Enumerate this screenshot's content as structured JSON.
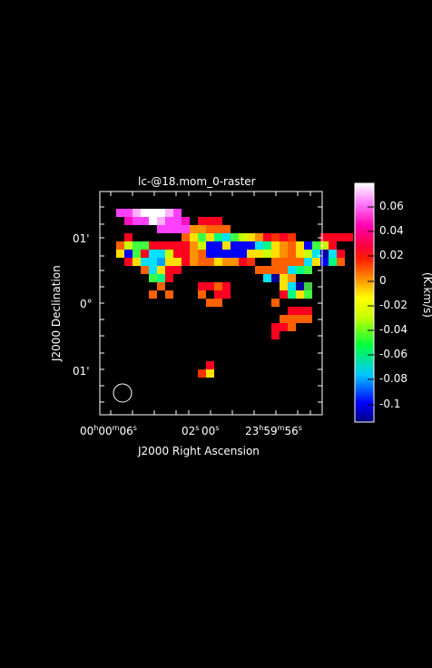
{
  "title": "lc-@18.mom_0-raster",
  "x_axis": {
    "label": "J2000 Right Ascension",
    "ticks": [
      {
        "h": "00",
        "m": "00",
        "s": "06"
      },
      {
        "s": "02"
      },
      {
        "s": "00"
      },
      {
        "h": "23",
        "m": "59",
        "s": "56"
      }
    ]
  },
  "y_axis": {
    "label": "J2000 Declination",
    "ticks": [
      "01'",
      "0°",
      "01'"
    ]
  },
  "colorbar": {
    "unit": "(K.km/s)",
    "ticks": [
      "0.06",
      "0.04",
      "0.02",
      "0",
      "-0.02",
      "-0.04",
      "-0.06",
      "-0.08",
      "-0.1"
    ]
  },
  "beam": "ellipse",
  "colors": {
    "background": "#000000",
    "axes": "#ffffff"
  }
}
